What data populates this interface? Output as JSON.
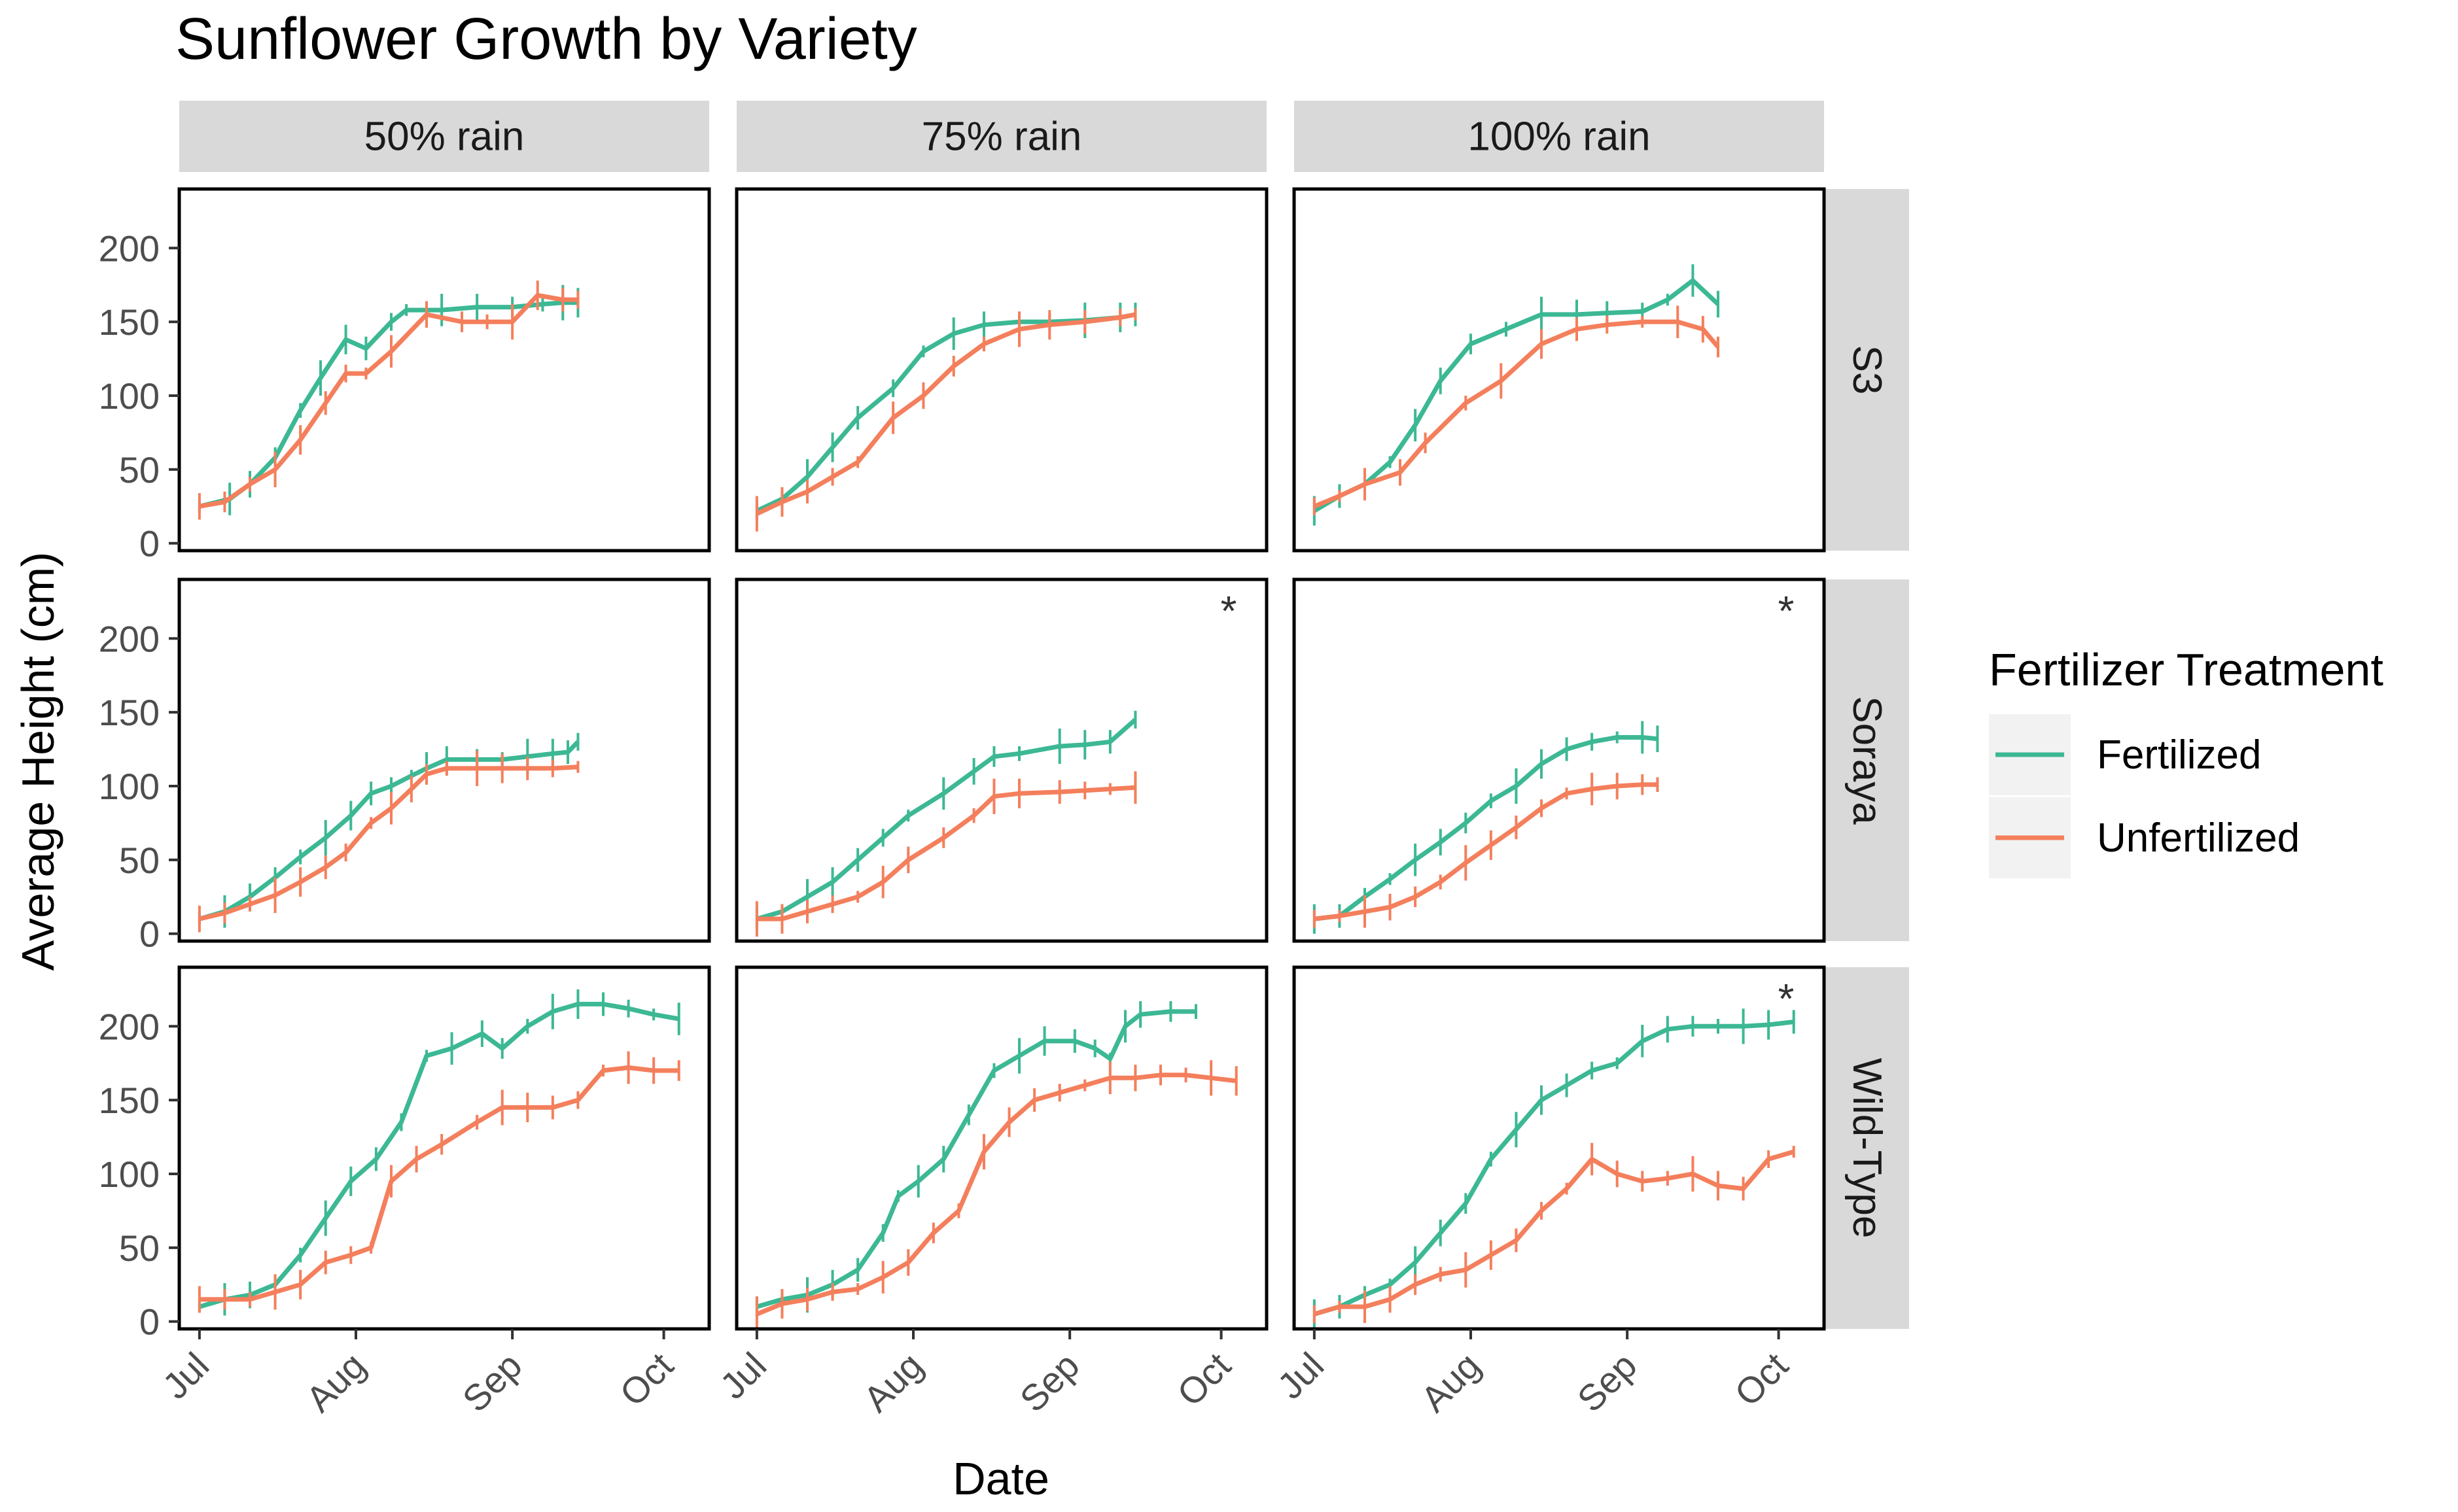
{
  "chart_data": {
    "type": "line",
    "title": "Sunflower Growth by Variety",
    "xlabel": "Date",
    "ylabel": "Average Height (cm)",
    "ylim": [
      -5,
      240
    ],
    "xlim_day": [
      -4,
      101
    ],
    "x_unit": "days since Jul 1",
    "y_ticks": [
      0,
      50,
      100,
      150,
      200
    ],
    "x_ticks": [
      {
        "day": 0,
        "label": "Jul"
      },
      {
        "day": 31,
        "label": "Aug"
      },
      {
        "day": 62,
        "label": "Sep"
      },
      {
        "day": 92,
        "label": "Oct"
      }
    ],
    "columns": [
      "50% rain",
      "75% rain",
      "100% rain"
    ],
    "rows": [
      "S3",
      "Soraya",
      "Wild-Type"
    ],
    "legend": {
      "title": "Fertilizer Treatment",
      "entries": [
        {
          "name": "Fertilized",
          "color": "#3cb894"
        },
        {
          "name": "Unfertilized",
          "color": "#f47f5c"
        }
      ]
    },
    "panels": [
      {
        "row": "S3",
        "col": "50% rain",
        "annotation": "",
        "fertilized": [
          [
            0,
            25
          ],
          [
            6,
            30
          ],
          [
            10,
            40
          ],
          [
            15,
            58
          ],
          [
            20,
            90
          ],
          [
            24,
            112
          ],
          [
            29,
            138
          ],
          [
            33,
            132
          ],
          [
            38,
            150
          ],
          [
            41,
            158
          ],
          [
            48,
            158
          ],
          [
            55,
            160
          ],
          [
            62,
            160
          ],
          [
            68,
            162
          ],
          [
            72,
            163
          ],
          [
            75,
            163
          ]
        ],
        "unfertilized": [
          [
            0,
            25
          ],
          [
            5,
            28
          ],
          [
            10,
            40
          ],
          [
            15,
            50
          ],
          [
            20,
            70
          ],
          [
            25,
            95
          ],
          [
            29,
            115
          ],
          [
            33,
            115
          ],
          [
            38,
            130
          ],
          [
            45,
            155
          ],
          [
            52,
            150
          ],
          [
            57,
            150
          ],
          [
            62,
            150
          ],
          [
            67,
            168
          ],
          [
            72,
            165
          ],
          [
            75,
            165
          ]
        ]
      },
      {
        "row": "S3",
        "col": "75% rain",
        "annotation": "",
        "fertilized": [
          [
            0,
            22
          ],
          [
            5,
            30
          ],
          [
            10,
            45
          ],
          [
            15,
            65
          ],
          [
            20,
            85
          ],
          [
            27,
            105
          ],
          [
            33,
            130
          ],
          [
            39,
            142
          ],
          [
            45,
            148
          ],
          [
            52,
            150
          ],
          [
            58,
            150
          ],
          [
            65,
            151
          ],
          [
            72,
            153
          ],
          [
            75,
            155
          ]
        ],
        "unfertilized": [
          [
            0,
            20
          ],
          [
            5,
            28
          ],
          [
            10,
            35
          ],
          [
            15,
            45
          ],
          [
            20,
            55
          ],
          [
            27,
            85
          ],
          [
            33,
            100
          ],
          [
            39,
            120
          ],
          [
            45,
            135
          ],
          [
            52,
            145
          ],
          [
            58,
            148
          ],
          [
            65,
            150
          ],
          [
            72,
            153
          ],
          [
            75,
            155
          ]
        ]
      },
      {
        "row": "S3",
        "col": "100% rain",
        "annotation": "",
        "fertilized": [
          [
            0,
            22
          ],
          [
            5,
            32
          ],
          [
            10,
            40
          ],
          [
            15,
            55
          ],
          [
            20,
            80
          ],
          [
            25,
            110
          ],
          [
            31,
            135
          ],
          [
            38,
            145
          ],
          [
            45,
            155
          ],
          [
            52,
            155
          ],
          [
            58,
            156
          ],
          [
            65,
            157
          ],
          [
            70,
            165
          ],
          [
            75,
            178
          ],
          [
            80,
            162
          ]
        ],
        "unfertilized": [
          [
            0,
            25
          ],
          [
            5,
            32
          ],
          [
            10,
            40
          ],
          [
            17,
            48
          ],
          [
            22,
            68
          ],
          [
            30,
            95
          ],
          [
            37,
            110
          ],
          [
            45,
            135
          ],
          [
            52,
            145
          ],
          [
            58,
            148
          ],
          [
            65,
            150
          ],
          [
            72,
            150
          ],
          [
            77,
            145
          ],
          [
            80,
            133
          ]
        ]
      },
      {
        "row": "Soraya",
        "col": "50% rain",
        "annotation": "",
        "fertilized": [
          [
            0,
            10
          ],
          [
            5,
            15
          ],
          [
            10,
            25
          ],
          [
            15,
            38
          ],
          [
            20,
            52
          ],
          [
            25,
            65
          ],
          [
            30,
            80
          ],
          [
            34,
            95
          ],
          [
            38,
            100
          ],
          [
            42,
            107
          ],
          [
            45,
            112
          ],
          [
            49,
            118
          ],
          [
            55,
            118
          ],
          [
            60,
            118
          ],
          [
            65,
            120
          ],
          [
            70,
            122
          ],
          [
            73,
            123
          ],
          [
            75,
            130
          ]
        ],
        "unfertilized": [
          [
            0,
            10
          ],
          [
            5,
            14
          ],
          [
            10,
            20
          ],
          [
            15,
            26
          ],
          [
            20,
            35
          ],
          [
            25,
            45
          ],
          [
            29,
            55
          ],
          [
            34,
            75
          ],
          [
            38,
            85
          ],
          [
            42,
            98
          ],
          [
            45,
            108
          ],
          [
            49,
            112
          ],
          [
            55,
            112
          ],
          [
            60,
            112
          ],
          [
            65,
            112
          ],
          [
            70,
            112
          ],
          [
            75,
            113
          ]
        ]
      },
      {
        "row": "Soraya",
        "col": "75% rain",
        "annotation": "*",
        "fertilized": [
          [
            0,
            10
          ],
          [
            5,
            15
          ],
          [
            10,
            25
          ],
          [
            15,
            35
          ],
          [
            20,
            50
          ],
          [
            25,
            65
          ],
          [
            30,
            80
          ],
          [
            37,
            95
          ],
          [
            43,
            110
          ],
          [
            47,
            120
          ],
          [
            52,
            122
          ],
          [
            60,
            127
          ],
          [
            65,
            128
          ],
          [
            70,
            130
          ],
          [
            75,
            145
          ]
        ],
        "unfertilized": [
          [
            0,
            10
          ],
          [
            5,
            10
          ],
          [
            10,
            15
          ],
          [
            15,
            20
          ],
          [
            20,
            25
          ],
          [
            25,
            35
          ],
          [
            30,
            50
          ],
          [
            37,
            65
          ],
          [
            43,
            80
          ],
          [
            47,
            93
          ],
          [
            52,
            95
          ],
          [
            60,
            96
          ],
          [
            65,
            97
          ],
          [
            70,
            98
          ],
          [
            75,
            99
          ]
        ]
      },
      {
        "row": "Soraya",
        "col": "100% rain",
        "annotation": "*",
        "fertilized": [
          [
            0,
            10
          ],
          [
            5,
            12
          ],
          [
            10,
            25
          ],
          [
            15,
            37
          ],
          [
            20,
            50
          ],
          [
            25,
            62
          ],
          [
            30,
            75
          ],
          [
            35,
            90
          ],
          [
            40,
            100
          ],
          [
            45,
            115
          ],
          [
            50,
            125
          ],
          [
            55,
            130
          ],
          [
            60,
            133
          ],
          [
            65,
            133
          ],
          [
            68,
            132
          ]
        ],
        "unfertilized": [
          [
            0,
            10
          ],
          [
            5,
            12
          ],
          [
            10,
            15
          ],
          [
            15,
            18
          ],
          [
            20,
            25
          ],
          [
            25,
            35
          ],
          [
            30,
            48
          ],
          [
            35,
            60
          ],
          [
            40,
            72
          ],
          [
            45,
            85
          ],
          [
            50,
            95
          ],
          [
            55,
            98
          ],
          [
            60,
            100
          ],
          [
            65,
            101
          ],
          [
            68,
            101
          ]
        ]
      },
      {
        "row": "Wild-Type",
        "col": "50% rain",
        "annotation": "",
        "fertilized": [
          [
            0,
            10
          ],
          [
            5,
            15
          ],
          [
            10,
            18
          ],
          [
            15,
            25
          ],
          [
            20,
            45
          ],
          [
            25,
            70
          ],
          [
            30,
            95
          ],
          [
            35,
            110
          ],
          [
            40,
            135
          ],
          [
            45,
            180
          ],
          [
            50,
            185
          ],
          [
            56,
            195
          ],
          [
            60,
            185
          ],
          [
            65,
            200
          ],
          [
            70,
            210
          ],
          [
            75,
            215
          ],
          [
            80,
            215
          ],
          [
            85,
            212
          ],
          [
            90,
            208
          ],
          [
            95,
            205
          ]
        ],
        "unfertilized": [
          [
            0,
            15
          ],
          [
            5,
            15
          ],
          [
            10,
            15
          ],
          [
            15,
            20
          ],
          [
            20,
            25
          ],
          [
            25,
            40
          ],
          [
            30,
            45
          ],
          [
            34,
            50
          ],
          [
            38,
            95
          ],
          [
            43,
            110
          ],
          [
            48,
            120
          ],
          [
            55,
            135
          ],
          [
            60,
            145
          ],
          [
            65,
            145
          ],
          [
            70,
            145
          ],
          [
            75,
            150
          ],
          [
            80,
            170
          ],
          [
            85,
            172
          ],
          [
            90,
            170
          ],
          [
            95,
            170
          ]
        ]
      },
      {
        "row": "Wild-Type",
        "col": "75% rain",
        "annotation": "",
        "fertilized": [
          [
            0,
            10
          ],
          [
            5,
            15
          ],
          [
            10,
            18
          ],
          [
            15,
            25
          ],
          [
            20,
            35
          ],
          [
            25,
            60
          ],
          [
            28,
            85
          ],
          [
            32,
            95
          ],
          [
            37,
            110
          ],
          [
            42,
            140
          ],
          [
            47,
            170
          ],
          [
            52,
            180
          ],
          [
            57,
            190
          ],
          [
            63,
            190
          ],
          [
            67,
            185
          ],
          [
            70,
            178
          ],
          [
            73,
            200
          ],
          [
            76,
            208
          ],
          [
            82,
            210
          ],
          [
            87,
            210
          ]
        ],
        "unfertilized": [
          [
            0,
            5
          ],
          [
            5,
            12
          ],
          [
            10,
            15
          ],
          [
            15,
            20
          ],
          [
            20,
            22
          ],
          [
            25,
            30
          ],
          [
            30,
            40
          ],
          [
            35,
            60
          ],
          [
            40,
            75
          ],
          [
            45,
            115
          ],
          [
            50,
            135
          ],
          [
            55,
            150
          ],
          [
            60,
            155
          ],
          [
            65,
            160
          ],
          [
            70,
            165
          ],
          [
            75,
            165
          ],
          [
            80,
            167
          ],
          [
            85,
            167
          ],
          [
            90,
            165
          ],
          [
            95,
            163
          ]
        ]
      },
      {
        "row": "Wild-Type",
        "col": "100% rain",
        "annotation": "*",
        "fertilized": [
          [
            0,
            5
          ],
          [
            5,
            10
          ],
          [
            10,
            18
          ],
          [
            15,
            25
          ],
          [
            20,
            40
          ],
          [
            25,
            60
          ],
          [
            30,
            80
          ],
          [
            35,
            110
          ],
          [
            40,
            130
          ],
          [
            45,
            150
          ],
          [
            50,
            160
          ],
          [
            55,
            170
          ],
          [
            60,
            175
          ],
          [
            65,
            190
          ],
          [
            70,
            198
          ],
          [
            75,
            200
          ],
          [
            80,
            200
          ],
          [
            85,
            200
          ],
          [
            90,
            201
          ],
          [
            95,
            203
          ]
        ],
        "unfertilized": [
          [
            0,
            5
          ],
          [
            5,
            10
          ],
          [
            10,
            10
          ],
          [
            15,
            15
          ],
          [
            20,
            25
          ],
          [
            25,
            32
          ],
          [
            30,
            35
          ],
          [
            35,
            45
          ],
          [
            40,
            55
          ],
          [
            45,
            75
          ],
          [
            50,
            90
          ],
          [
            55,
            110
          ],
          [
            60,
            100
          ],
          [
            65,
            95
          ],
          [
            70,
            97
          ],
          [
            75,
            100
          ],
          [
            80,
            92
          ],
          [
            85,
            90
          ],
          [
            90,
            110
          ],
          [
            95,
            115
          ]
        ]
      }
    ]
  }
}
